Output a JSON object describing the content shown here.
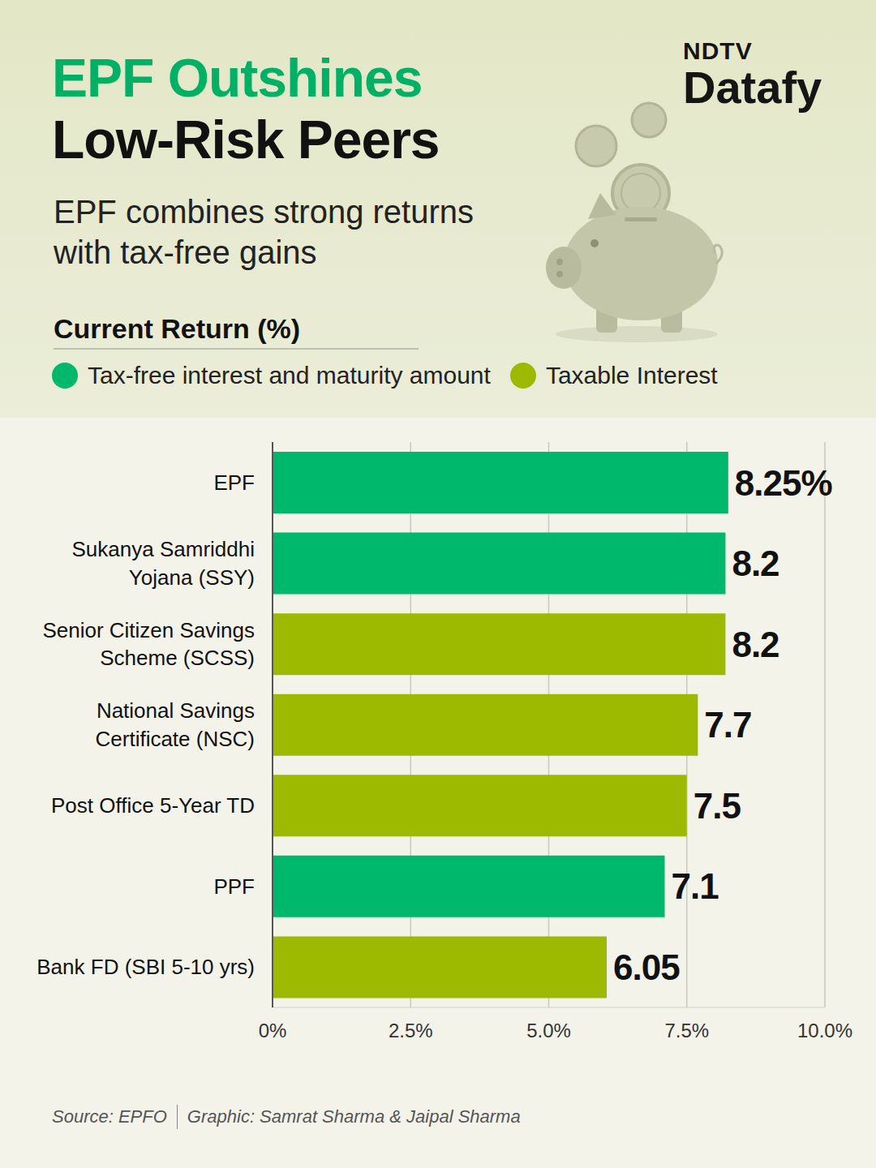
{
  "chart_data": {
    "type": "bar",
    "orientation": "horizontal",
    "brand": [
      "NDTV",
      "Datafy"
    ],
    "title": [
      "EPF Outshines",
      "Low-Risk Peers"
    ],
    "subtitle": "EPF combines strong returns with tax-free gains",
    "x_label": "Current Return (%)",
    "categories": [
      "EPF",
      "Sukanya Samriddhi Yojana (SSY)",
      "Senior Citizen Savings Scheme (SCSS)",
      "National Savings Certificate (NSC)",
      "Post Office 5-Year TD",
      "PPF",
      "Bank FD (SBI 5-10 yrs)"
    ],
    "series": [
      {
        "name": "Tax-free interest and maturity amount",
        "color": "#00b86b",
        "values": [
          8.25,
          8.2,
          null,
          null,
          null,
          7.1,
          null
        ],
        "value_labels": [
          "8.25%",
          "8.2",
          null,
          null,
          null,
          "7.1",
          null
        ]
      },
      {
        "name": "Taxable Interest",
        "color": "#9dba00",
        "values": [
          null,
          null,
          8.2,
          7.7,
          7.5,
          null,
          6.05
        ]
      }
    ],
    "xlim": [
      0,
      10
    ],
    "xticks": [
      {
        "value": 0,
        "label": "0%"
      },
      {
        "value": 2.5,
        "label": "2.5%"
      },
      {
        "value": 5,
        "label": "5.0%"
      },
      {
        "value": 7.5,
        "label": "7.5%"
      },
      {
        "value": 10,
        "label": "10.0%"
      }
    ],
    "grid": true,
    "legend": "top",
    "data_labels": true,
    "source": "Source: EPFO",
    "credit": "Graphic: Samrat Sharma & Jaipal Sharma"
  }
}
